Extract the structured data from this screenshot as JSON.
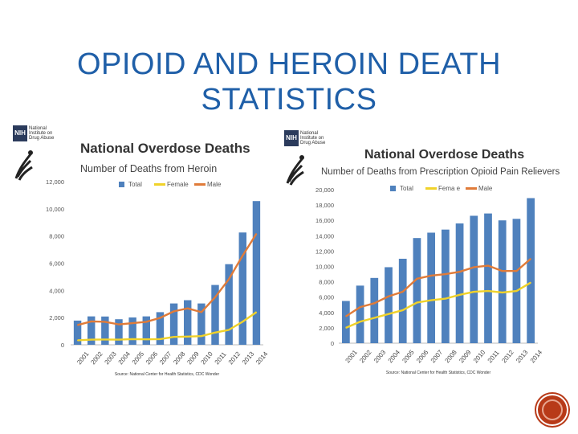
{
  "slide": {
    "title_line1": "OPIOID AND HEROIN DEATH",
    "title_line2": "STATISTICS"
  },
  "colors": {
    "title": "#1f5fa8",
    "bar": "#4f81bd",
    "female": "#f0d22a",
    "male": "#e07b39",
    "button": "#b83a18"
  },
  "logos": {
    "nih_badge": "NIH",
    "nih_text": "National Institute on Drug Abuse"
  },
  "chart_data": [
    {
      "type": "bar",
      "title": "National Overdose Deaths",
      "subtitle": "Number of Deaths from Heroin",
      "categories": [
        "2001",
        "2002",
        "2003",
        "2004",
        "2005",
        "2006",
        "2007",
        "2008",
        "2009",
        "2010",
        "2011",
        "2012",
        "2013",
        "2014"
      ],
      "series": [
        {
          "name": "Total",
          "kind": "bar",
          "values": [
            1780,
            2090,
            2080,
            1880,
            2010,
            2090,
            2400,
            3040,
            3280,
            3040,
            4400,
            5930,
            8260,
            10570
          ]
        },
        {
          "name": "Female",
          "kind": "line",
          "values": [
            330,
            380,
            390,
            380,
            420,
            400,
            420,
            580,
            600,
            640,
            900,
            1100,
            1700,
            2400
          ]
        },
        {
          "name": "Male",
          "kind": "line",
          "values": [
            1450,
            1720,
            1690,
            1500,
            1590,
            1690,
            1980,
            2460,
            2680,
            2400,
            3500,
            4830,
            6560,
            8170
          ]
        }
      ],
      "ylim": [
        0,
        12000
      ],
      "yticks": [
        "0",
        "2,000",
        "4,000",
        "6,000",
        "8,000",
        "10,000",
        "12,000"
      ],
      "ytick_values": [
        0,
        2000,
        4000,
        6000,
        8000,
        10000,
        12000
      ],
      "legend": [
        "Total",
        "Female",
        "Male"
      ],
      "legend_position": "top",
      "source": "Source: National Center for Health Statistics, CDC Wonder"
    },
    {
      "type": "bar",
      "title": "National Overdose Deaths",
      "subtitle": "Number of Deaths from Prescription Opioid Pain Relievers",
      "categories": [
        "2001",
        "2002",
        "2003",
        "2004",
        "2005",
        "2006",
        "2007",
        "2008",
        "2009",
        "2010",
        "2011",
        "2012",
        "2013",
        "2014"
      ],
      "series": [
        {
          "name": "Total",
          "kind": "bar",
          "values": [
            5500,
            7500,
            8500,
            9900,
            11000,
            13700,
            14400,
            14800,
            15600,
            16600,
            16900,
            16000,
            16200,
            18900
          ]
        },
        {
          "name": "Female",
          "kind": "line",
          "values": [
            2000,
            2800,
            3300,
            3800,
            4300,
            5300,
            5600,
            5800,
            6300,
            6700,
            6800,
            6600,
            6800,
            7900
          ]
        },
        {
          "name": "Male",
          "kind": "line",
          "values": [
            3500,
            4700,
            5200,
            6100,
            6700,
            8400,
            8800,
            9000,
            9300,
            9900,
            10100,
            9400,
            9400,
            11000
          ]
        }
      ],
      "ylim": [
        0,
        20000
      ],
      "yticks": [
        "0",
        "2,000",
        "4,000",
        "6,000",
        "8,000",
        "10,000",
        "12,000",
        "14,000",
        "16,000",
        "18,000",
        "20,000"
      ],
      "ytick_values": [
        0,
        2000,
        4000,
        6000,
        8000,
        10000,
        12000,
        14000,
        16000,
        18000,
        20000
      ],
      "legend": [
        "Total",
        "Fema e",
        "Male"
      ],
      "legend_position": "top",
      "source": "Source: National Center for Health Statistics, CDC Wonder"
    }
  ]
}
